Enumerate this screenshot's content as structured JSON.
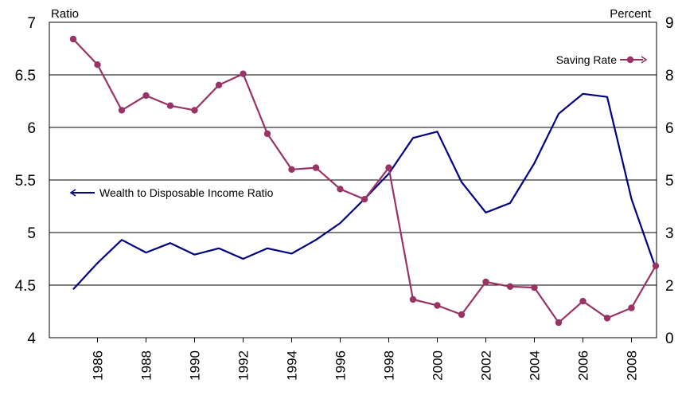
{
  "chart_data": {
    "type": "line",
    "x": [
      1985,
      1986,
      1987,
      1988,
      1989,
      1990,
      1991,
      1992,
      1993,
      1994,
      1995,
      1996,
      1997,
      1998,
      1999,
      2000,
      2001,
      2002,
      2003,
      2004,
      2005,
      2006,
      2007,
      2008,
      2009
    ],
    "x_tick_labels": [
      "1986",
      "1988",
      "1990",
      "1992",
      "1994",
      "1996",
      "1998",
      "2000",
      "2002",
      "2004",
      "2006",
      "2008"
    ],
    "left_axis": {
      "label": "Ratio",
      "range": [
        4,
        7
      ],
      "tick_labels": [
        "4",
        "4.5",
        "5",
        "5.5",
        "6",
        "6.5",
        "7"
      ]
    },
    "right_axis": {
      "label": "Percent",
      "range": [
        0,
        9
      ],
      "tick_labels": [
        "0",
        "2",
        "3",
        "5",
        "6",
        "8",
        "9"
      ]
    },
    "series": [
      {
        "name": "Wealth to Disposable Income Ratio",
        "axis": "left",
        "color": "#000080",
        "markers": false,
        "values": [
          4.46,
          4.71,
          4.93,
          4.81,
          4.9,
          4.79,
          4.85,
          4.75,
          4.85,
          4.8,
          4.93,
          5.09,
          5.32,
          5.56,
          5.9,
          5.96,
          5.48,
          5.19,
          5.28,
          5.66,
          6.13,
          6.32,
          6.29,
          5.32,
          4.66
        ]
      },
      {
        "name": "Saving Rate",
        "axis": "right",
        "color": "#993366",
        "markers": true,
        "values": [
          8.52,
          7.79,
          6.49,
          6.91,
          6.62,
          6.49,
          7.21,
          7.53,
          5.82,
          4.8,
          4.85,
          4.24,
          3.95,
          4.85,
          1.09,
          0.92,
          0.66,
          1.59,
          1.46,
          1.43,
          0.43,
          1.04,
          0.56,
          0.85,
          2.05
        ]
      }
    ],
    "legend_placement": "inline",
    "grid": "horizontal"
  }
}
